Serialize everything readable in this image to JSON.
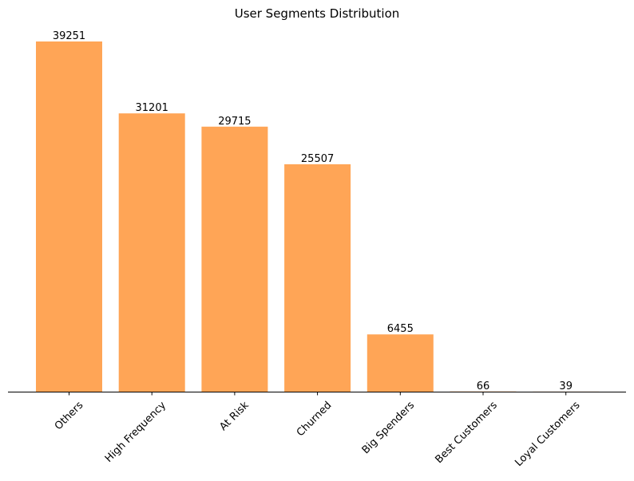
{
  "chart_data": {
    "type": "bar",
    "title": "User Segments Distribution",
    "categories": [
      "Others",
      "High Frequency",
      "At Risk",
      "Churned",
      "Big Spenders",
      "Best Customers",
      "Loyal Customers"
    ],
    "values": [
      39251,
      31201,
      29715,
      25507,
      6455,
      66,
      39
    ],
    "ylim": [
      0,
      39251
    ],
    "bar_color": "#ffa556",
    "grid": false,
    "y_axis_visible": false,
    "x_tick_rotation_deg": 45
  }
}
